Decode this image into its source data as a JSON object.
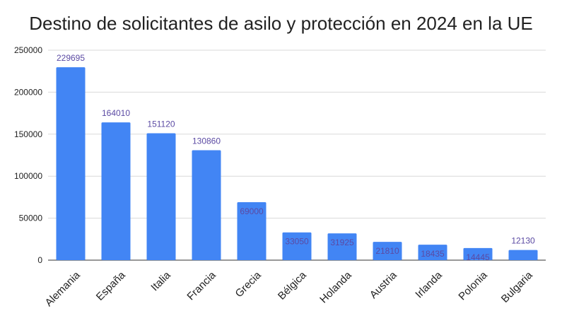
{
  "chart_data": {
    "type": "bar",
    "title": "Destino de solicitantes de asilo y protección en 2024 en la UE",
    "categories": [
      "Alemania",
      "España",
      "Italia",
      "Francia",
      "Grecia",
      "Bélgica",
      "Holanda",
      "Austria",
      "Irlanda",
      "Polonia",
      "Bulgaria"
    ],
    "values": [
      229695,
      164010,
      151120,
      130860,
      69000,
      33050,
      31925,
      21810,
      18435,
      14445,
      12130
    ],
    "data_labels": [
      "229695",
      "164010",
      "151120",
      "130860",
      "69000",
      "33050",
      "31925",
      "21810",
      "18435",
      "14445",
      "12130"
    ],
    "xlabel": "",
    "ylabel": "",
    "ylim": [
      0,
      250000
    ],
    "yticks": [
      0,
      50000,
      100000,
      150000,
      200000,
      250000
    ],
    "ytick_labels": [
      "0",
      "50000",
      "100000",
      "150000",
      "200000",
      "250000"
    ],
    "grid": true,
    "legend": "none",
    "colors": {
      "bar": "#4285f4",
      "data_label": "#5b4aa3",
      "grid": "#d9d9d9",
      "text": "#222222"
    }
  }
}
